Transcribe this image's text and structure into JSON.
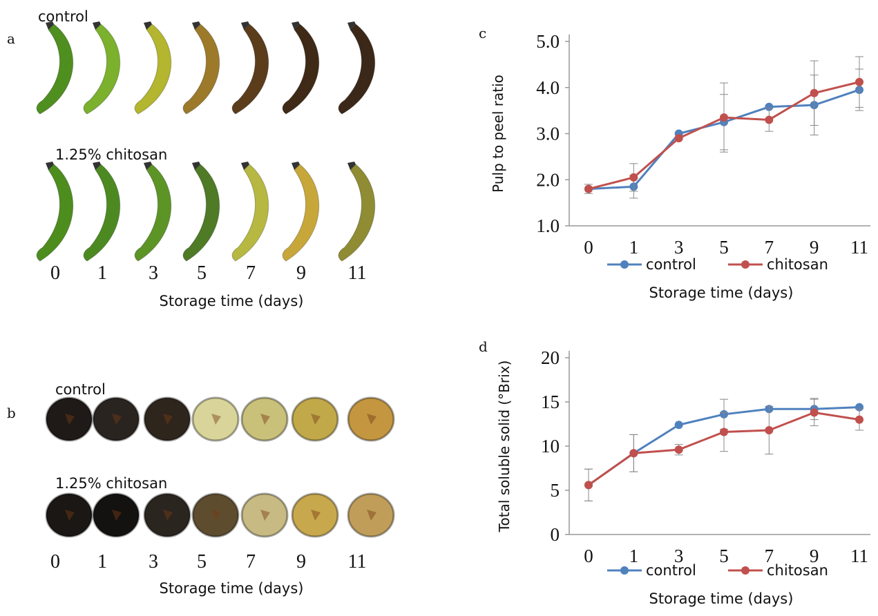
{
  "panels": {
    "a": {
      "letter": "a",
      "row1_label": "control",
      "row2_label": "1.25% chitosan",
      "days": [
        "0",
        "1",
        "3",
        "5",
        "7",
        "9",
        "11"
      ],
      "xlabel": "Storage time (days)",
      "control_colors": [
        "#4f8f1f",
        "#7bb12d",
        "#b3b62e",
        "#9c7a2a",
        "#5b3d1c",
        "#3e2a16",
        "#3b2818"
      ],
      "chitosan_colors": [
        "#4d8d1e",
        "#4c8a21",
        "#5d9426",
        "#4f7a26",
        "#b7b842",
        "#c7a73a",
        "#8f8c33"
      ]
    },
    "b": {
      "letter": "b",
      "row1_label": "control",
      "row2_label": "1.25% chitosan",
      "days": [
        "0",
        "1",
        "3",
        "5",
        "7",
        "9",
        "11"
      ],
      "xlabel": "Storage time (days)",
      "control_colors": [
        "#1f1a17",
        "#2a2420",
        "#2e251c",
        "#d9d59a",
        "#c9c07a",
        "#c1a94a",
        "#c49640"
      ],
      "chitosan_colors": [
        "#1a1714",
        "#141211",
        "#2b2520",
        "#5e4c2e",
        "#c7ba82",
        "#c8a84d",
        "#c09e5a"
      ]
    }
  },
  "chart_data": [
    {
      "panel": "c",
      "type": "line",
      "xlabel": "Storage time (days)",
      "ylabel": "Pulp to peel ratio",
      "categories": [
        "0",
        "1",
        "3",
        "5",
        "7",
        "9",
        "11"
      ],
      "ylim": [
        1.0,
        5.0
      ],
      "yticks": [
        "1.0",
        "2.0",
        "3.0",
        "4.0",
        "5.0"
      ],
      "legend": "bottom",
      "series": [
        {
          "name": "control",
          "color": "#4f81bd",
          "values": [
            1.8,
            1.85,
            3.0,
            3.25,
            3.58,
            3.62,
            3.95
          ],
          "errors": [
            0.1,
            0.25,
            0.0,
            0.6,
            0.0,
            0.65,
            0.45
          ]
        },
        {
          "name": "chitosan",
          "color": "#c0504d",
          "values": [
            1.8,
            2.05,
            2.9,
            3.35,
            3.3,
            3.88,
            4.12
          ],
          "errors": [
            0.0,
            0.3,
            0.0,
            0.75,
            0.25,
            0.7,
            0.55
          ]
        }
      ]
    },
    {
      "panel": "d",
      "type": "line",
      "xlabel": "Storage time (days)",
      "ylabel": "Total soluble solid (°Brix)",
      "categories": [
        "0",
        "1",
        "3",
        "5",
        "7",
        "9",
        "11"
      ],
      "ylim": [
        0,
        20
      ],
      "yticks": [
        "0",
        "5",
        "10",
        "15",
        "20"
      ],
      "legend": "bottom",
      "series": [
        {
          "name": "control",
          "color": "#4f81bd",
          "values": [
            5.6,
            9.2,
            12.4,
            13.6,
            14.2,
            14.2,
            14.4
          ],
          "errors": [
            1.8,
            2.1,
            0.0,
            1.7,
            0.0,
            1.2,
            0.0
          ]
        },
        {
          "name": "chitosan",
          "color": "#c0504d",
          "values": [
            5.6,
            9.2,
            9.6,
            11.6,
            11.8,
            13.8,
            13.0
          ],
          "errors": [
            1.8,
            2.1,
            0.6,
            2.2,
            2.7,
            1.5,
            1.2
          ]
        }
      ]
    }
  ]
}
